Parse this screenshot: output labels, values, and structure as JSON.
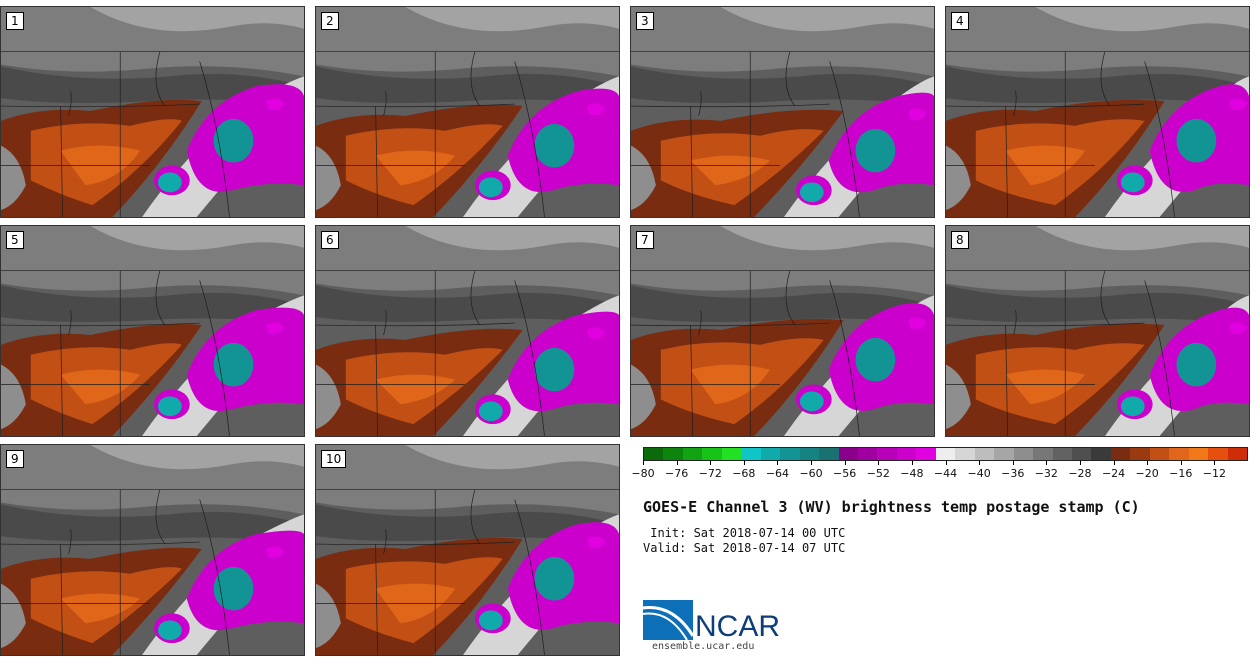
{
  "panels": [
    {
      "label": "1",
      "v": 0
    },
    {
      "label": "2",
      "v": 1
    },
    {
      "label": "3",
      "v": 2
    },
    {
      "label": "4",
      "v": 3
    },
    {
      "label": "5",
      "v": 4
    },
    {
      "label": "6",
      "v": 5
    },
    {
      "label": "7",
      "v": 6
    },
    {
      "label": "8",
      "v": 7
    },
    {
      "label": "9",
      "v": 8
    },
    {
      "label": "10",
      "v": 9
    }
  ],
  "colorbar": {
    "colors": [
      "#0b6b0b",
      "#0d850d",
      "#12a312",
      "#17c317",
      "#22e022",
      "#0fc5c5",
      "#11aaaa",
      "#139494",
      "#168282",
      "#197171",
      "#8a008a",
      "#a000a0",
      "#b800b8",
      "#cc00cc",
      "#e000e0",
      "#eeeeee",
      "#d6d6d6",
      "#bdbdbd",
      "#a6a6a6",
      "#8e8e8e",
      "#777777",
      "#626262",
      "#4f4f4f",
      "#3a3a3a",
      "#7a2c10",
      "#9a3a10",
      "#c25015",
      "#e0661a",
      "#f07818",
      "#e55010",
      "#cf2c08"
    ],
    "ticks": [
      "-80",
      "-76",
      "-72",
      "-68",
      "-64",
      "-60",
      "-56",
      "-52",
      "-48",
      "-44",
      "-40",
      "-36",
      "-32",
      "-28",
      "-24",
      "-20",
      "-16",
      "-12"
    ],
    "min": -80,
    "max": -8
  },
  "title": "GOES-E Channel 3 (WV) brightness temp postage stamp (C)",
  "init_line": " Init: Sat 2018-07-14 00 UTC",
  "valid_line": "Valid: Sat 2018-07-14 07 UTC",
  "logo_text": "NCAR",
  "url": "ensemble.ucar.edu"
}
